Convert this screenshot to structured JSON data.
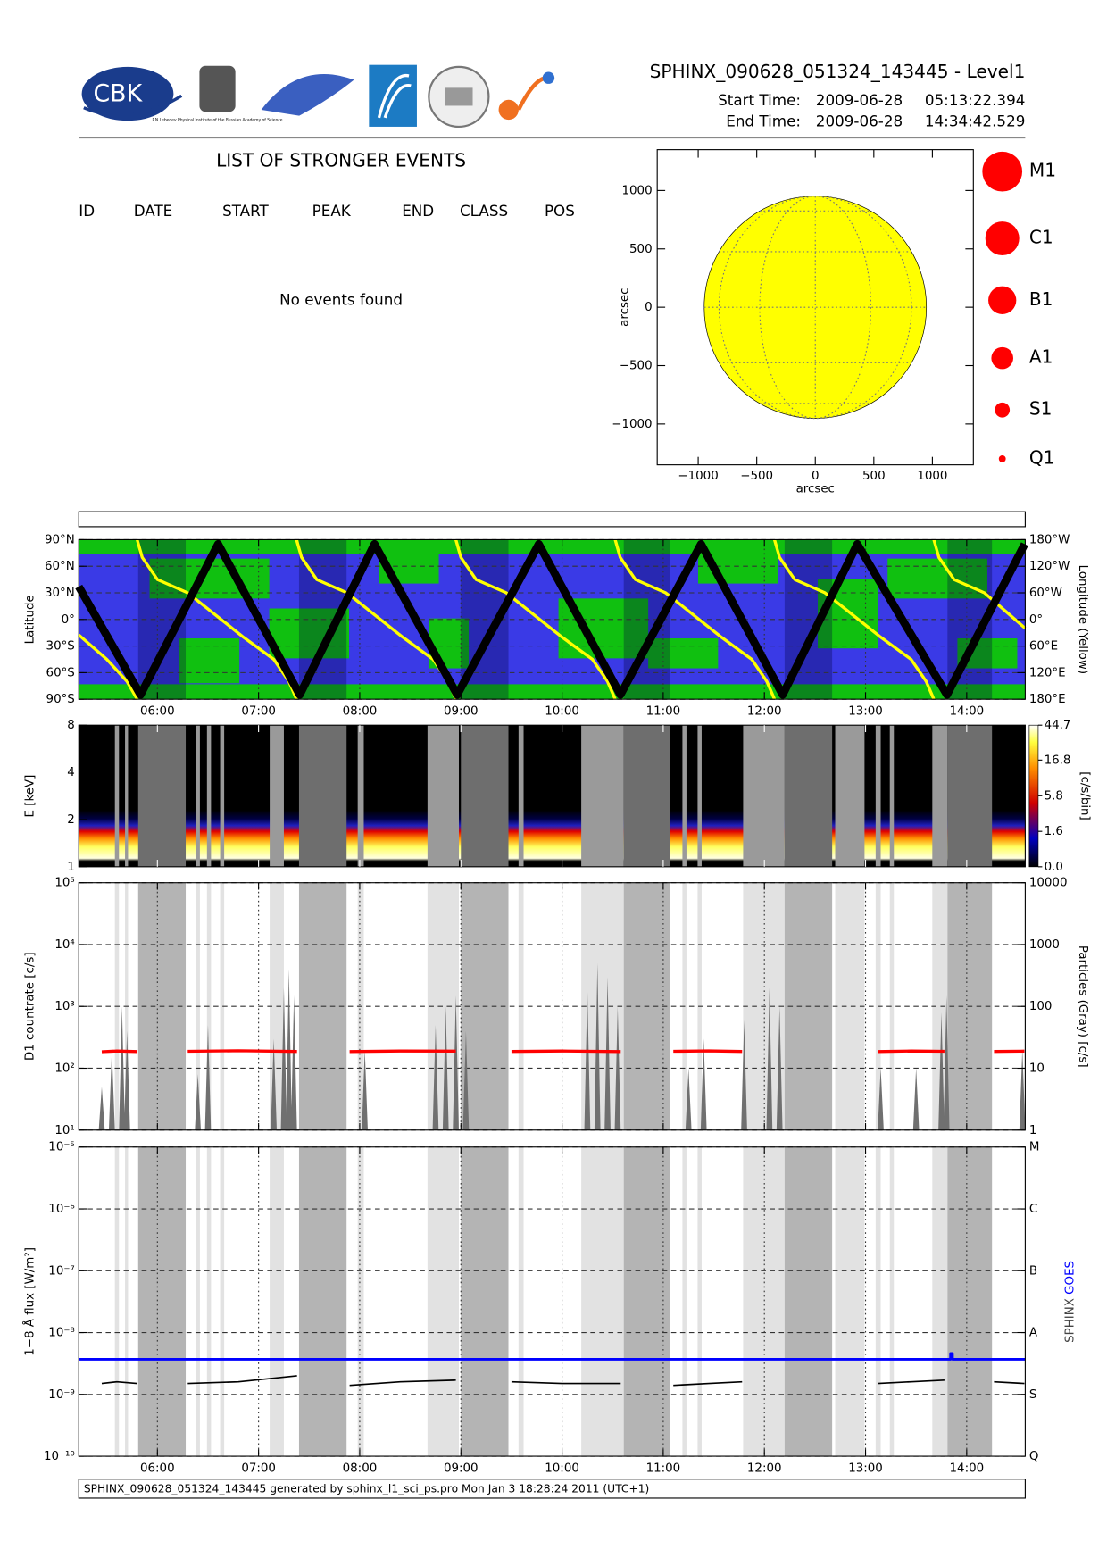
{
  "header": {
    "logo_text": "CBK",
    "logo_caption": "P.N.Lebedev Physical Institute of the Russian Academy of Science",
    "title": "SPHINX_090628_051324_143445 - Level1",
    "start_label": "Start Time:",
    "start_date": "2009-06-28",
    "start_time": "05:13:22.394",
    "end_label": "End Time:",
    "end_date": "2009-06-28",
    "end_time": "14:34:42.529"
  },
  "events": {
    "title": "LIST OF STRONGER EVENTS",
    "columns": [
      "ID",
      "DATE",
      "START",
      "PEAK",
      "END",
      "CLASS",
      "POS"
    ],
    "message": "No events found"
  },
  "shaded_intervals": {
    "light": [
      [
        5.58,
        5.62
      ],
      [
        5.68,
        5.71
      ],
      [
        6.38,
        6.42
      ],
      [
        6.49,
        6.53
      ],
      [
        6.62,
        6.66
      ],
      [
        7.11,
        7.25
      ],
      [
        7.98,
        8.04
      ],
      [
        8.67,
        8.98
      ],
      [
        9.57,
        9.62
      ],
      [
        10.19,
        10.61
      ],
      [
        11.19,
        11.23
      ],
      [
        11.34,
        11.38
      ],
      [
        11.79,
        12.2
      ],
      [
        12.7,
        12.99
      ],
      [
        13.1,
        13.15
      ],
      [
        13.24,
        13.28
      ],
      [
        13.66,
        13.81
      ]
    ],
    "dark": [
      [
        5.81,
        6.28
      ],
      [
        7.4,
        7.87
      ],
      [
        9.0,
        9.47
      ],
      [
        10.61,
        11.07
      ],
      [
        12.2,
        12.67
      ],
      [
        13.81,
        14.25
      ]
    ]
  },
  "chart_data": [
    {
      "type": "disk",
      "xlabel": "arcsec",
      "ylabel": "arcsec",
      "xlim": [
        -1350,
        1350
      ],
      "ylim": [
        -1350,
        1350
      ],
      "xticks": [
        {
          "value": -1000,
          "label": "−1000"
        },
        {
          "value": -500,
          "label": "−500"
        },
        0,
        500,
        1000
      ],
      "yticks": [
        {
          "value": -1000,
          "label": "−1000"
        },
        {
          "value": -500,
          "label": "−500"
        },
        0,
        500,
        1000
      ],
      "radius": 949,
      "color": "#ffff00",
      "grid": true,
      "legend": {
        "labels": [
          "M1",
          "C1",
          "B1",
          "A1",
          "S1",
          "Q1"
        ],
        "color": "#ff0000"
      }
    },
    {
      "type": "orbit",
      "ylabel": "Latitude",
      "y2label": "Longitude (Yellow)",
      "xlim": [
        5.2229,
        14.5785
      ],
      "xticks": [
        {
          "value": 6,
          "label": "06:00"
        },
        {
          "value": 7,
          "label": "07:00"
        },
        {
          "value": 8,
          "label": "08:00"
        },
        {
          "value": 9,
          "label": "09:00"
        },
        {
          "value": 10,
          "label": "10:00"
        },
        {
          "value": 11,
          "label": "11:00"
        },
        {
          "value": 12,
          "label": "12:00"
        },
        {
          "value": 13,
          "label": "13:00"
        },
        {
          "value": 14,
          "label": "14:00"
        }
      ],
      "ylim": [
        -90,
        90
      ],
      "yticks": [
        {
          "value": -90,
          "label": "90°S"
        },
        {
          "value": -60,
          "label": "60°S"
        },
        {
          "value": -30,
          "label": "30°S"
        },
        {
          "value": 0,
          "label": "0°"
        },
        {
          "value": 30,
          "label": "30°N"
        },
        {
          "value": 60,
          "label": "60°N"
        },
        {
          "value": 90,
          "label": "90°N"
        }
      ],
      "y2lim": [
        -180,
        180
      ],
      "y2ticks": [
        {
          "value": -180,
          "label": "180°E"
        },
        {
          "value": -120,
          "label": "120°E"
        },
        {
          "value": -60,
          "label": "60°E"
        },
        {
          "value": 0,
          "label": "0°"
        },
        {
          "value": 60,
          "label": "60°W"
        },
        {
          "value": 120,
          "label": "120°W"
        },
        {
          "value": 180,
          "label": "180°W"
        }
      ],
      "grid": true,
      "series": [
        {
          "color": "#000000",
          "x": [
            5.2229,
            5.833,
            6.6,
            7.407,
            8.146,
            8.963,
            9.77,
            10.577,
            11.374,
            12.181,
            12.919,
            13.805,
            14.573
          ],
          "values": [
            37,
            -85,
            85,
            -85,
            85,
            -85,
            85,
            -85,
            85,
            -85,
            85,
            -85,
            85
          ]
        },
        {
          "color": "#ffff00",
          "axis": "y2",
          "x": [
            5.2229,
            5.5,
            5.7,
            5.8,
            5.8,
            5.8,
            5.85,
            6.0,
            6.3,
            6.85,
            7.15,
            7.3,
            7.375,
            7.375,
            7.375,
            7.425,
            7.575,
            7.875,
            8.425,
            8.725,
            8.875,
            8.95,
            8.95,
            8.95,
            9.0,
            9.15,
            9.45,
            10.0,
            10.3,
            10.45,
            10.525,
            10.525,
            10.525,
            10.575,
            10.725,
            11.025,
            11.575,
            11.875,
            12.025,
            12.1,
            12.1,
            12.1,
            12.15,
            12.3,
            12.6,
            13.15,
            13.45,
            13.6,
            13.675,
            13.675,
            13.675,
            13.725,
            13.875,
            14.175,
            14.5785
          ],
          "values": [
            -35,
            -90,
            -140,
            -180,
            null,
            180,
            140,
            90,
            60,
            -40,
            -90,
            -140,
            -180,
            null,
            180,
            140,
            90,
            60,
            -40,
            -90,
            -140,
            -180,
            null,
            180,
            140,
            90,
            60,
            -40,
            -90,
            -140,
            -180,
            null,
            180,
            140,
            90,
            60,
            -40,
            -90,
            -140,
            -180,
            null,
            180,
            140,
            90,
            60,
            -40,
            -90,
            -140,
            -180,
            null,
            180,
            140,
            90,
            60,
            -20
          ]
        }
      ]
    },
    {
      "type": "spectrogram",
      "ylabel": "E [keV]",
      "ylog": true,
      "ylim": [
        1,
        8
      ],
      "yticks": [
        1,
        2,
        4,
        8
      ],
      "xlim": [
        5.2229,
        14.5785
      ],
      "xticks": [
        {
          "value": 6,
          "label": "06:00"
        },
        {
          "value": 7,
          "label": "07:00"
        },
        {
          "value": 8,
          "label": "08:00"
        },
        {
          "value": 9,
          "label": "09:00"
        },
        {
          "value": 10,
          "label": "10:00"
        },
        {
          "value": 11,
          "label": "11:00"
        },
        {
          "value": 12,
          "label": "12:00"
        },
        {
          "value": 13,
          "label": "13:00"
        },
        {
          "value": 14,
          "label": "14:00"
        }
      ],
      "colorbar": {
        "label": "[c/s/bin]",
        "scale": "log1p",
        "lim": [
          0,
          44.7
        ],
        "ticks": [
          {
            "value": 0,
            "label": "0.0"
          },
          1.6,
          5.8,
          16.8,
          44.7
        ]
      }
    },
    {
      "type": "line",
      "ylabel": "D1 countrate [c/s]",
      "y2label": "Particles (Gray) [c/s]",
      "ylog": true,
      "xlim": [
        5.2229,
        14.5785
      ],
      "xticks": [
        {
          "value": 6,
          "label": "06:00"
        },
        {
          "value": 7,
          "label": "07:00"
        },
        {
          "value": 8,
          "label": "08:00"
        },
        {
          "value": 9,
          "label": "09:00"
        },
        {
          "value": 10,
          "label": "10:00"
        },
        {
          "value": 11,
          "label": "11:00"
        },
        {
          "value": 12,
          "label": "12:00"
        },
        {
          "value": 13,
          "label": "13:00"
        },
        {
          "value": 14,
          "label": "14:00"
        }
      ],
      "ylim": [
        10,
        100000
      ],
      "yticks": [
        {
          "value": 10,
          "label": "10¹"
        },
        {
          "value": 100,
          "label": "10²"
        },
        {
          "value": 1000,
          "label": "10³"
        },
        {
          "value": 10000,
          "label": "10⁴"
        },
        {
          "value": 100000,
          "label": "10⁵"
        }
      ],
      "y2lim": [
        1,
        10000
      ],
      "y2ticks": [
        1,
        10,
        100,
        1000,
        10000
      ],
      "grid": true,
      "series": [
        {
          "color": "#ff0000",
          "x": [
            5.45,
            5.6,
            5.8,
            6.0,
            6.3,
            6.8,
            7.38,
            7.6,
            7.9,
            8.4,
            8.95,
            9.2,
            9.5,
            10.0,
            10.58,
            10.8,
            11.1,
            11.45,
            11.78,
            12.5,
            13.12,
            13.45,
            13.78,
            14.0,
            14.27,
            14.57
          ],
          "values": [
            185,
            190,
            186,
            null,
            188,
            192,
            187,
            null,
            186,
            190,
            189,
            null,
            187,
            190,
            186,
            null,
            188,
            191,
            187,
            null,
            186,
            190,
            188,
            null,
            187,
            189
          ]
        },
        {
          "color": "#707070",
          "axis": "y2",
          "x": [
            5.45,
            5.55,
            5.65,
            5.7,
            6.4,
            6.5,
            7.15,
            7.25,
            7.3,
            7.35,
            8.05,
            8.75,
            8.85,
            8.95,
            9.05,
            10.25,
            10.35,
            10.45,
            10.55,
            11.25,
            11.4,
            11.8,
            12.05,
            12.15,
            13.15,
            13.5,
            13.75,
            13.8,
            14.55
          ],
          "values": [
            5,
            20,
            100,
            40,
            8,
            50,
            30,
            200,
            400,
            150,
            20,
            50,
            100,
            150,
            40,
            200,
            500,
            300,
            100,
            10,
            30,
            60,
            200,
            100,
            10,
            10,
            80,
            150,
            20
          ]
        }
      ]
    },
    {
      "type": "line",
      "ylabel": "1−8 Å flux [W/m²]",
      "ylog": true,
      "xlim": [
        5.2229,
        14.5785
      ],
      "xticks": [
        {
          "value": 6,
          "label": "06:00"
        },
        {
          "value": 7,
          "label": "07:00"
        },
        {
          "value": 8,
          "label": "08:00"
        },
        {
          "value": 9,
          "label": "09:00"
        },
        {
          "value": 10,
          "label": "10:00"
        },
        {
          "value": 11,
          "label": "11:00"
        },
        {
          "value": 12,
          "label": "12:00"
        },
        {
          "value": 13,
          "label": "13:00"
        },
        {
          "value": 14,
          "label": "14:00"
        }
      ],
      "ylim": [
        1e-10,
        1e-05
      ],
      "yticks": [
        {
          "value": 1e-10,
          "label": "10⁻¹⁰"
        },
        {
          "value": 1e-09,
          "label": "10⁻⁹"
        },
        {
          "value": 1e-08,
          "label": "10⁻⁸"
        },
        {
          "value": 1e-07,
          "label": "10⁻⁷"
        },
        {
          "value": 1e-06,
          "label": "10⁻⁶"
        },
        {
          "value": 1e-05,
          "label": "10⁻⁵"
        }
      ],
      "y2lim": [
        1e-10,
        1e-05
      ],
      "y2ticks": [
        {
          "value": 1e-10,
          "label": "Q"
        },
        {
          "value": 1e-09,
          "label": "S"
        },
        {
          "value": 1e-08,
          "label": "A"
        },
        {
          "value": 1e-07,
          "label": "B"
        },
        {
          "value": 1e-06,
          "label": "C"
        },
        {
          "value": 1e-05,
          "label": "M"
        }
      ],
      "grid": true,
      "series": [
        {
          "name": "SPHINX",
          "color": "#000000",
          "x": [
            5.45,
            5.6,
            5.8,
            6.0,
            6.3,
            6.8,
            7.38,
            7.6,
            7.9,
            8.4,
            8.95,
            9.2,
            9.5,
            10.0,
            10.58,
            10.8,
            11.1,
            11.45,
            11.78,
            12.5,
            13.12,
            13.45,
            13.78,
            14.0,
            14.27,
            14.57
          ],
          "values": [
            1.5e-09,
            1.6e-09,
            1.5e-09,
            null,
            1.5e-09,
            1.6e-09,
            2e-09,
            null,
            1.4e-09,
            1.6e-09,
            1.7e-09,
            null,
            1.6e-09,
            1.5e-09,
            1.5e-09,
            null,
            1.4e-09,
            1.5e-09,
            1.6e-09,
            null,
            1.5e-09,
            1.6e-09,
            1.7e-09,
            null,
            1.6e-09,
            1.5e-09
          ]
        },
        {
          "name": "GOES",
          "color": "#0000ff",
          "x": [
            5.2229,
            13.84,
            13.84,
            13.86,
            13.86,
            14.5785
          ],
          "values": [
            3.7e-09,
            3.7e-09,
            4.6e-09,
            4.6e-09,
            3.7e-09,
            3.7e-09
          ]
        }
      ]
    }
  ],
  "footer": "SPHINX_090628_051324_143445 generated by sphinx_l1_sci_ps.pro Mon Jan  3 18:28:24 2011 (UTC+1)"
}
